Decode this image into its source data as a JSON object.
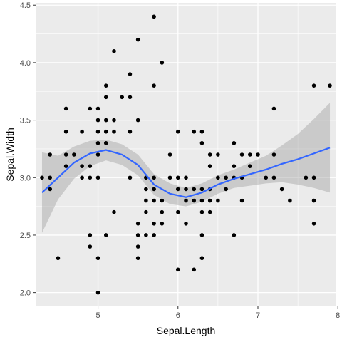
{
  "chart_data": {
    "type": "scatter",
    "xlabel": "Sepal.Length",
    "ylabel": "Sepal.Width",
    "xlim": [
      4.22,
      7.98
    ],
    "ylim": [
      1.88,
      4.52
    ],
    "x_ticks": [
      5,
      6,
      7,
      8
    ],
    "y_ticks": [
      2.0,
      2.5,
      3.0,
      3.5,
      4.0,
      4.5
    ],
    "x_tick_labels": [
      "5",
      "6",
      "7",
      "8"
    ],
    "y_tick_labels": [
      "2.0",
      "2.5",
      "3.0",
      "3.5",
      "4.0",
      "4.5"
    ],
    "grid": true,
    "colors": {
      "panel": "#ebebeb",
      "grid": "#ffffff",
      "points": "#000000",
      "smooth_line": "#3366ff",
      "ribbon": "#999999"
    },
    "points": [
      [
        4.3,
        3.0
      ],
      [
        4.4,
        2.9
      ],
      [
        4.4,
        3.0
      ],
      [
        4.4,
        3.2
      ],
      [
        4.5,
        2.3
      ],
      [
        4.6,
        3.1
      ],
      [
        4.6,
        3.2
      ],
      [
        4.6,
        3.4
      ],
      [
        4.6,
        3.6
      ],
      [
        4.7,
        3.2
      ],
      [
        4.8,
        3.0
      ],
      [
        4.8,
        3.1
      ],
      [
        4.8,
        3.4
      ],
      [
        4.9,
        2.4
      ],
      [
        4.9,
        2.5
      ],
      [
        4.9,
        3.0
      ],
      [
        4.9,
        3.1
      ],
      [
        4.9,
        3.6
      ],
      [
        5.0,
        2.0
      ],
      [
        5.0,
        2.3
      ],
      [
        5.0,
        3.0
      ],
      [
        5.0,
        3.2
      ],
      [
        5.0,
        3.3
      ],
      [
        5.0,
        3.4
      ],
      [
        5.0,
        3.5
      ],
      [
        5.0,
        3.6
      ],
      [
        5.1,
        2.5
      ],
      [
        5.1,
        3.3
      ],
      [
        5.1,
        3.4
      ],
      [
        5.1,
        3.5
      ],
      [
        5.1,
        3.7
      ],
      [
        5.1,
        3.8
      ],
      [
        5.2,
        2.7
      ],
      [
        5.2,
        3.4
      ],
      [
        5.2,
        3.5
      ],
      [
        5.2,
        4.1
      ],
      [
        5.3,
        3.7
      ],
      [
        5.4,
        3.0
      ],
      [
        5.4,
        3.4
      ],
      [
        5.4,
        3.7
      ],
      [
        5.4,
        3.9
      ],
      [
        5.5,
        2.3
      ],
      [
        5.5,
        2.4
      ],
      [
        5.5,
        2.5
      ],
      [
        5.5,
        2.6
      ],
      [
        5.5,
        3.5
      ],
      [
        5.5,
        4.2
      ],
      [
        5.6,
        2.5
      ],
      [
        5.6,
        2.7
      ],
      [
        5.6,
        2.8
      ],
      [
        5.6,
        2.9
      ],
      [
        5.6,
        3.0
      ],
      [
        5.7,
        2.5
      ],
      [
        5.7,
        2.6
      ],
      [
        5.7,
        2.8
      ],
      [
        5.7,
        2.9
      ],
      [
        5.7,
        3.0
      ],
      [
        5.7,
        3.8
      ],
      [
        5.7,
        4.4
      ],
      [
        5.8,
        2.6
      ],
      [
        5.8,
        2.7
      ],
      [
        5.8,
        2.8
      ],
      [
        5.8,
        4.0
      ],
      [
        5.9,
        3.0
      ],
      [
        5.9,
        3.2
      ],
      [
        6.0,
        2.2
      ],
      [
        6.0,
        2.7
      ],
      [
        6.0,
        2.9
      ],
      [
        6.0,
        3.0
      ],
      [
        6.0,
        3.4
      ],
      [
        6.1,
        2.6
      ],
      [
        6.1,
        2.8
      ],
      [
        6.1,
        2.9
      ],
      [
        6.1,
        3.0
      ],
      [
        6.2,
        2.2
      ],
      [
        6.2,
        2.8
      ],
      [
        6.2,
        2.9
      ],
      [
        6.2,
        3.4
      ],
      [
        6.3,
        2.3
      ],
      [
        6.3,
        2.5
      ],
      [
        6.3,
        2.7
      ],
      [
        6.3,
        2.8
      ],
      [
        6.3,
        2.9
      ],
      [
        6.3,
        3.3
      ],
      [
        6.3,
        3.4
      ],
      [
        6.4,
        2.7
      ],
      [
        6.4,
        2.8
      ],
      [
        6.4,
        2.9
      ],
      [
        6.4,
        3.1
      ],
      [
        6.4,
        3.2
      ],
      [
        6.5,
        2.8
      ],
      [
        6.5,
        3.0
      ],
      [
        6.5,
        3.2
      ],
      [
        6.6,
        2.9
      ],
      [
        6.6,
        3.0
      ],
      [
        6.7,
        2.5
      ],
      [
        6.7,
        3.0
      ],
      [
        6.7,
        3.1
      ],
      [
        6.7,
        3.3
      ],
      [
        6.8,
        2.8
      ],
      [
        6.8,
        3.0
      ],
      [
        6.8,
        3.2
      ],
      [
        6.9,
        3.1
      ],
      [
        6.9,
        3.2
      ],
      [
        7.0,
        3.2
      ],
      [
        7.1,
        3.0
      ],
      [
        7.2,
        3.0
      ],
      [
        7.2,
        3.2
      ],
      [
        7.2,
        3.6
      ],
      [
        7.3,
        2.9
      ],
      [
        7.4,
        2.8
      ],
      [
        7.6,
        3.0
      ],
      [
        7.7,
        2.6
      ],
      [
        7.7,
        2.8
      ],
      [
        7.7,
        3.0
      ],
      [
        7.7,
        3.8
      ],
      [
        7.9,
        3.8
      ]
    ],
    "smooth": {
      "x": [
        4.3,
        4.5,
        4.7,
        4.9,
        5.1,
        5.3,
        5.5,
        5.7,
        5.9,
        6.1,
        6.3,
        6.5,
        6.7,
        6.9,
        7.1,
        7.3,
        7.5,
        7.7,
        7.9
      ],
      "y": [
        2.87,
        3.0,
        3.13,
        3.21,
        3.24,
        3.2,
        3.11,
        2.94,
        2.86,
        2.83,
        2.87,
        2.94,
        2.99,
        3.03,
        3.07,
        3.12,
        3.16,
        3.21,
        3.26
      ],
      "lower": [
        2.52,
        2.81,
        2.99,
        3.1,
        3.15,
        3.11,
        3.02,
        2.85,
        2.77,
        2.75,
        2.79,
        2.86,
        2.91,
        2.93,
        2.95,
        2.96,
        2.94,
        2.91,
        2.87
      ],
      "upper": [
        3.22,
        3.19,
        3.27,
        3.32,
        3.33,
        3.29,
        3.2,
        3.03,
        2.95,
        2.91,
        2.95,
        3.02,
        3.07,
        3.13,
        3.19,
        3.28,
        3.38,
        3.51,
        3.65
      ]
    }
  }
}
